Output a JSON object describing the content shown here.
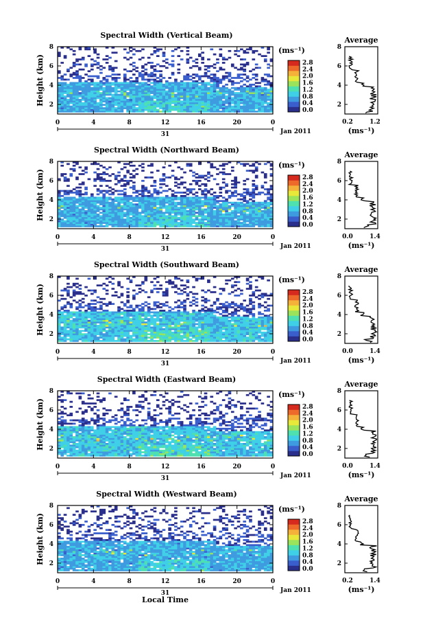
{
  "chart_data": [
    {
      "type": "heatmap",
      "title": "Spectral Width (Vertical Beam)",
      "ylabel": "Height (km)",
      "x_ticks": [
        "0",
        "4",
        "8",
        "12",
        "16",
        "20",
        "0"
      ],
      "y_ticks": [
        "2",
        "4",
        "6",
        "8"
      ],
      "day_label": "31",
      "month_label": "Jan 2011",
      "xlim": [
        0,
        24
      ],
      "ylim": [
        1,
        8
      ],
      "colorbar": {
        "unit": "(ms⁻¹)",
        "ticks": [
          "0.0",
          "0.4",
          "0.8",
          "1.2",
          "1.6",
          "2.0",
          "2.4",
          "2.8"
        ]
      },
      "average": {
        "title": "Average",
        "xlabel": "(ms⁻¹)",
        "x_ticks": [
          "0.2",
          "1.2"
        ],
        "y_ticks": [
          "2",
          "4",
          "6",
          "8"
        ],
        "xlim": [
          0.2,
          1.2
        ]
      }
    },
    {
      "type": "heatmap",
      "title": "Spectral Width (Northward Beam)",
      "ylabel": "Height (km)",
      "x_ticks": [
        "0",
        "4",
        "8",
        "12",
        "16",
        "20",
        "0"
      ],
      "y_ticks": [
        "2",
        "4",
        "6",
        "8"
      ],
      "day_label": "31",
      "month_label": "Jan 2011",
      "xlim": [
        0,
        24
      ],
      "ylim": [
        1,
        8
      ],
      "colorbar": {
        "unit": "(ms⁻¹)",
        "ticks": [
          "0.0",
          "0.4",
          "0.8",
          "1.2",
          "1.6",
          "2.0",
          "2.4",
          "2.8"
        ]
      },
      "average": {
        "title": "Average",
        "xlabel": "(ms⁻¹)",
        "x_ticks": [
          "0.0",
          "1.4"
        ],
        "y_ticks": [
          "2",
          "4",
          "6",
          "8"
        ],
        "xlim": [
          0,
          1.4
        ]
      }
    },
    {
      "type": "heatmap",
      "title": "Spectral Width (Southward Beam)",
      "ylabel": "Height (km)",
      "x_ticks": [
        "0",
        "4",
        "8",
        "12",
        "16",
        "20",
        "0"
      ],
      "y_ticks": [
        "2",
        "4",
        "6",
        "8"
      ],
      "day_label": "31",
      "month_label": "Jan 2011",
      "xlim": [
        0,
        24
      ],
      "ylim": [
        1,
        8
      ],
      "colorbar": {
        "unit": "(ms⁻¹)",
        "ticks": [
          "0.0",
          "0.4",
          "0.8",
          "1.2",
          "1.6",
          "2.0",
          "2.4",
          "2.8"
        ]
      },
      "average": {
        "title": "Average",
        "xlabel": "(ms⁻¹)",
        "x_ticks": [
          "0.0",
          "1.4"
        ],
        "y_ticks": [
          "2",
          "4",
          "6",
          "8"
        ],
        "xlim": [
          0,
          1.4
        ]
      }
    },
    {
      "type": "heatmap",
      "title": "Spectral Width (Eastward Beam)",
      "ylabel": "Height (km)",
      "x_ticks": [
        "0",
        "4",
        "8",
        "12",
        "16",
        "20",
        "0"
      ],
      "y_ticks": [
        "2",
        "4",
        "6",
        "8"
      ],
      "day_label": "31",
      "month_label": "Jan 2011",
      "xlim": [
        0,
        24
      ],
      "ylim": [
        1,
        8
      ],
      "colorbar": {
        "unit": "(ms⁻¹)",
        "ticks": [
          "0.0",
          "0.4",
          "0.8",
          "1.2",
          "1.6",
          "2.0",
          "2.4",
          "2.8"
        ]
      },
      "average": {
        "title": "Average",
        "xlabel": "(ms⁻¹)",
        "x_ticks": [
          "0.0",
          "1.4"
        ],
        "y_ticks": [
          "2",
          "4",
          "6",
          "8"
        ],
        "xlim": [
          0,
          1.4
        ]
      }
    },
    {
      "type": "heatmap",
      "title": "Spectral Width (Westward Beam)",
      "ylabel": "Height (km)",
      "xlabel": "Local Time",
      "x_ticks": [
        "0",
        "4",
        "8",
        "12",
        "16",
        "20",
        "0"
      ],
      "y_ticks": [
        "2",
        "4",
        "6",
        "8"
      ],
      "day_label": "31",
      "month_label": "Jan 2011",
      "xlim": [
        0,
        24
      ],
      "ylim": [
        1,
        8
      ],
      "colorbar": {
        "unit": "(ms⁻¹)",
        "ticks": [
          "0.0",
          "0.4",
          "0.8",
          "1.2",
          "1.6",
          "2.0",
          "2.4",
          "2.8"
        ]
      },
      "average": {
        "title": "Average",
        "xlabel": "(ms⁻¹)",
        "x_ticks": [
          "0.2",
          "1.4"
        ],
        "y_ticks": [
          "2",
          "4",
          "6",
          "8"
        ],
        "xlim": [
          0.2,
          1.4
        ]
      }
    }
  ],
  "colors": {
    "colormap": [
      "#2b2f8c",
      "#3a5fcd",
      "#3f9be0",
      "#3fd0e8",
      "#4fe0b0",
      "#9be35a",
      "#e8e83a",
      "#f5b23a",
      "#ee6a2a",
      "#d62a1e"
    ],
    "empty": "#ffffff",
    "line": "#000000"
  }
}
